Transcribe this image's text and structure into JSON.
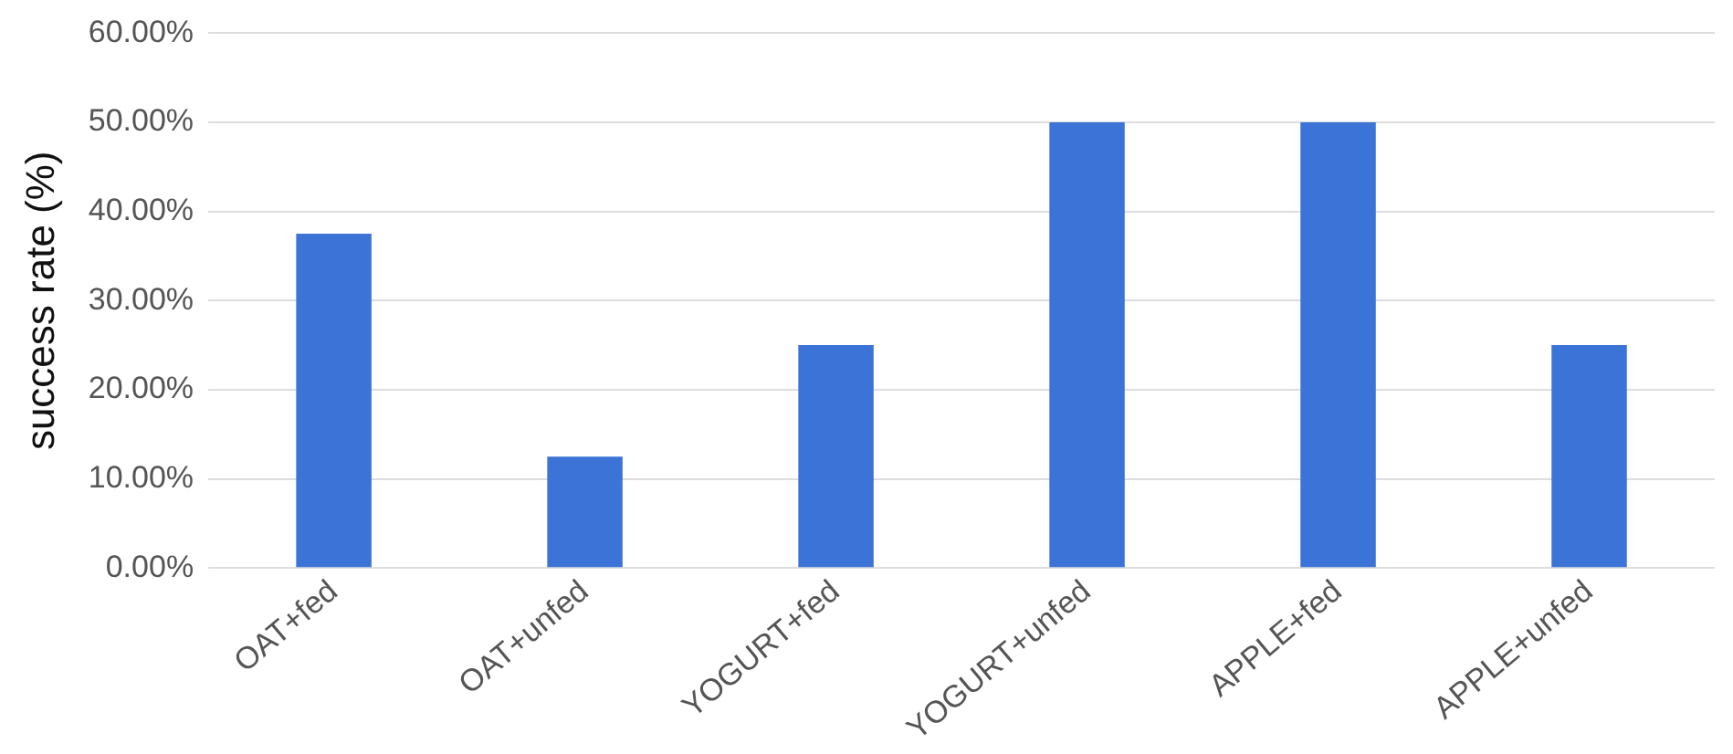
{
  "chart_data": {
    "type": "bar",
    "ylabel": "success rate (%)",
    "categories": [
      "OAT+fed",
      "OAT+unfed",
      "YOGURT+fed",
      "YOGURT+unfed",
      "APPLE+fed",
      "APPLE+unfed"
    ],
    "values": [
      37.5,
      12.5,
      25,
      50,
      50,
      25
    ],
    "color": "#3b73d6",
    "ylim": [
      0,
      60
    ],
    "yticks": [
      {
        "value": 0,
        "label": "0.00%"
      },
      {
        "value": 10,
        "label": "10.00%"
      },
      {
        "value": 20,
        "label": "20.00%"
      },
      {
        "value": 30,
        "label": "30.00%"
      },
      {
        "value": 40,
        "label": "40.00%"
      },
      {
        "value": 50,
        "label": "50.00%"
      },
      {
        "value": 60,
        "label": "60.00%"
      }
    ],
    "grid": "y",
    "legend": false
  }
}
